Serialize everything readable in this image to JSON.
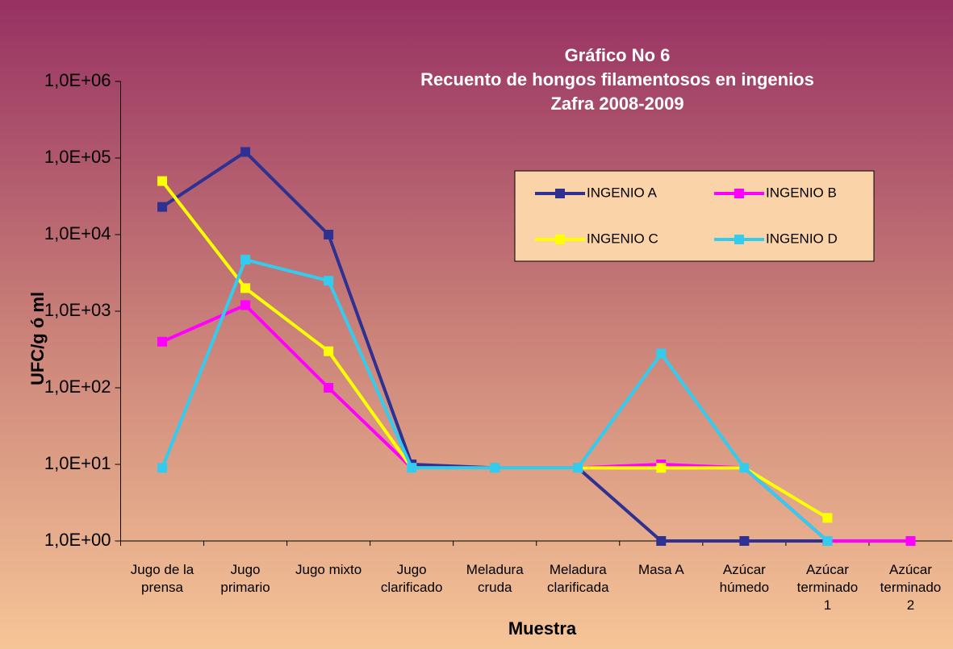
{
  "chart_data": {
    "type": "line",
    "title": [
      "Gráfico No 6",
      "Recuento de hongos filamentosos en ingenios",
      "Zafra 2008-2009"
    ],
    "y_label": "UFC/g ó ml",
    "x_label": "Muestra",
    "yscale": "log",
    "categories": [
      "Jugo de la\nprensa",
      "Jugo\nprimario",
      "Jugo mixto",
      "Jugo\nclarificado",
      "Meladura\ncruda",
      "Meladura\nclarificada",
      "Masa A",
      "Azúcar\nhúmedo",
      "Azúcar\nterminado\n1",
      "Azúcar\nterminado\n2"
    ],
    "series": [
      {
        "name": "INGENIO A",
        "color": "#2e3192",
        "values": [
          23000,
          120000,
          10000,
          10,
          9,
          9,
          1,
          1,
          1,
          1
        ]
      },
      {
        "name": "INGENIO B",
        "color": "#ff00ff",
        "values": [
          400,
          1200,
          100,
          9,
          9,
          9,
          10,
          9,
          1,
          1
        ]
      },
      {
        "name": "INGENIO C",
        "color": "#ffff00",
        "values": [
          50000,
          2000,
          300,
          9,
          9,
          9,
          9,
          9,
          2,
          null
        ]
      },
      {
        "name": "INGENIO D",
        "color": "#33ccee",
        "values": [
          9,
          4700,
          2500,
          9,
          9,
          9,
          280,
          9,
          1,
          null
        ]
      }
    ],
    "ylim": [
      1,
      1000000
    ],
    "yticks": [
      {
        "value": 1,
        "label": "1,0E+00"
      },
      {
        "value": 10,
        "label": "1,0E+01"
      },
      {
        "value": 100,
        "label": "1,0E+02"
      },
      {
        "value": 1000,
        "label": "1,0E+03"
      },
      {
        "value": 10000,
        "label": "1,0E+04"
      },
      {
        "value": 100000,
        "label": "1,0E+05"
      },
      {
        "value": 1000000,
        "label": "1,0E+06"
      }
    ]
  }
}
